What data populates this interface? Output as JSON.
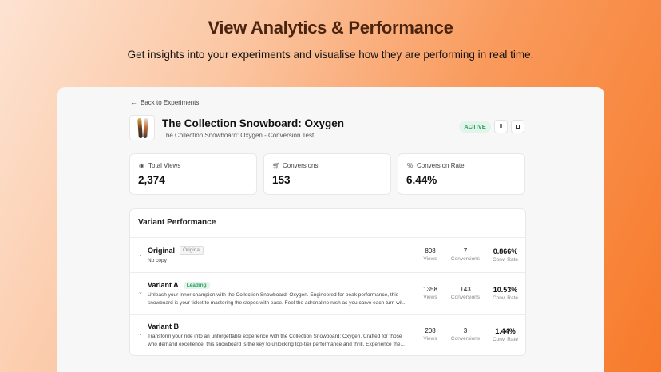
{
  "hero": {
    "title": "View Analytics & Performance",
    "subtitle": "Get insights into your experiments and visualise how they are performing in real time."
  },
  "nav": {
    "back_label": "Back to Experiments",
    "back_icon": "arrow-left-icon"
  },
  "product": {
    "title": "The Collection Snowboard: Oxygen",
    "subtitle": "The Collection Snowboard: Oxygen - Conversion Test"
  },
  "status": {
    "label": "ACTIVE",
    "color": "#2e9d62"
  },
  "controls": {
    "pause_glyph": "II"
  },
  "stats": [
    {
      "label": "Total Views",
      "value": "2,374",
      "icon": "eye-icon"
    },
    {
      "label": "Conversions",
      "value": "153",
      "icon": "cart-icon"
    },
    {
      "label": "Conversion Rate",
      "value": "6.44%",
      "icon": "percent-icon"
    }
  ],
  "variants": {
    "heading": "Variant Performance",
    "labels": {
      "views": "Views",
      "conversions": "Conversions",
      "rate": "Conv. Rate"
    },
    "items": [
      {
        "name": "Original",
        "tag": "Original",
        "description": "No copy",
        "views": "808",
        "conversions": "7",
        "rate": "0.866%"
      },
      {
        "name": "Variant A",
        "tag": "Leading",
        "description_line1": "Unleash your inner champion with the Collection Snowboard: Oxygen. Engineered for peak performance, this",
        "description_line2": "snowboard is your ticket to mastering the slopes with ease. Feel the adrenaline rush as you carve each turn wit...",
        "views": "1358",
        "conversions": "143",
        "rate": "10.53%"
      },
      {
        "name": "Variant B",
        "description_line1": "Transform your ride into an unforgettable experience with the Collection Snowboard: Oxygen. Crafted for those",
        "description_line2": "who demand excellence, this snowboard is the key to unlocking top-tier performance and thrill. Experience the...",
        "views": "208",
        "conversions": "3",
        "rate": "1.44%"
      }
    ]
  }
}
